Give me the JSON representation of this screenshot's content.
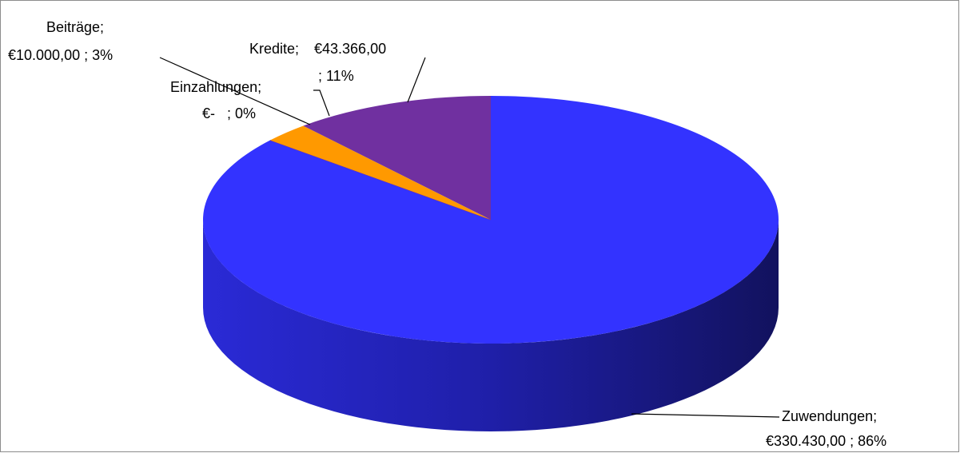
{
  "chart_data": {
    "type": "pie3d",
    "categories": [
      "Zuwendungen;",
      "Einzahlungen;",
      "Beiträge;",
      "Kredite;"
    ],
    "values": [
      330430,
      0,
      10000,
      43366
    ],
    "value_labels": [
      [
        "€330.430,00 ; 86%"
      ],
      [
        "€-   ; 0%"
      ],
      [
        "€10.000,00 ; 3%"
      ],
      [
        "€43.366,00",
        "; 11%"
      ]
    ],
    "colors": [
      "#3333ff",
      "#7030a0",
      "#ff9900",
      "#7030a0"
    ]
  }
}
